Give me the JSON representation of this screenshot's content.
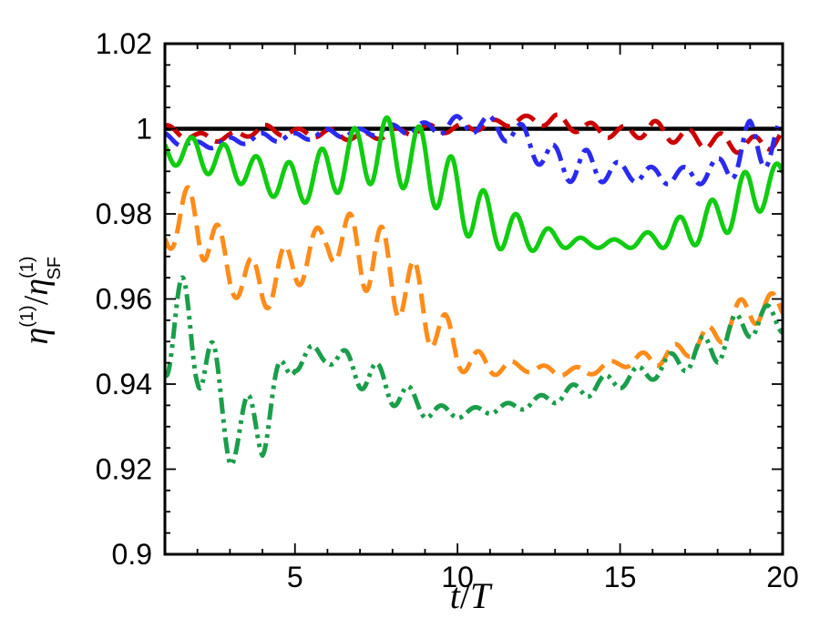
{
  "chart_data": {
    "type": "line",
    "xlabel": {
      "base": "t",
      "sep": "/",
      "den": "T"
    },
    "ylabel": {
      "eta": "η",
      "sup": "(1)",
      "slash": "/",
      "sub": "SF"
    },
    "xlim": [
      1,
      20
    ],
    "ylim": [
      0.9,
      1.02
    ],
    "x_ticks": [
      5,
      10,
      15,
      20
    ],
    "x_tick_labels": [
      "5",
      "10",
      "15",
      "20"
    ],
    "y_ticks": [
      0.9,
      0.92,
      0.94,
      0.96,
      0.98,
      1.0,
      1.02
    ],
    "y_tick_labels": [
      "0.9",
      "0.92",
      "0.94",
      "0.96",
      "0.98",
      "1",
      "1.02"
    ],
    "grid": false,
    "legend": "none",
    "series": [
      {
        "style": "solid",
        "color": "#000000",
        "x": [
          1,
          20
        ],
        "y": [
          1.0,
          1.0
        ]
      },
      {
        "style": "dashed",
        "color": "#cc0000",
        "x": [
          1,
          2,
          3,
          4,
          5,
          6,
          7,
          8,
          9,
          10,
          11,
          12,
          13,
          14,
          15,
          16,
          17,
          18,
          19,
          20
        ],
        "y": [
          1.0,
          0.998,
          0.998,
          1.0,
          0.999,
          0.999,
          0.998,
          0.999,
          1.0,
          1.0,
          1.001,
          1.002,
          1.002,
          1.0,
          0.999,
          1.0,
          0.998,
          0.997,
          0.996,
          0.998
        ],
        "amp": [
          0.001,
          0.001,
          0.001,
          0.001,
          0.001,
          0.001,
          0.001,
          0.001,
          0.001,
          0.001,
          0.001,
          0.001,
          0.0015,
          0.0015,
          0.0015,
          0.002,
          0.002,
          0.002,
          0.002,
          0.002
        ]
      },
      {
        "style": "dashdot",
        "color": "#2a2af0",
        "x": [
          1,
          2,
          3,
          4,
          5,
          6,
          7,
          8,
          9,
          10,
          11,
          12,
          13,
          14,
          15,
          16,
          17,
          18,
          19,
          20
        ],
        "y": [
          0.998,
          0.996,
          0.997,
          0.998,
          0.998,
          0.999,
          0.999,
          1.0,
          1.0,
          1.001,
          1.001,
          0.998,
          0.992,
          0.991,
          0.99,
          0.989,
          0.989,
          0.99,
          0.996,
          0.997
        ],
        "amp": [
          0.001,
          0.001,
          0.001,
          0.001,
          0.001,
          0.001,
          0.001,
          0.001,
          0.0015,
          0.002,
          0.002,
          0.003,
          0.004,
          0.004,
          0.002,
          0.002,
          0.002,
          0.003,
          0.006,
          0.005
        ]
      },
      {
        "style": "solid",
        "color": "#11cc11",
        "x": [
          1,
          2,
          3,
          4,
          5,
          6,
          7,
          8,
          9,
          10,
          11,
          12,
          13,
          14,
          15,
          16,
          17,
          18,
          19,
          20
        ],
        "y": [
          0.995,
          0.994,
          0.992,
          0.989,
          0.987,
          0.99,
          0.994,
          0.995,
          0.992,
          0.984,
          0.978,
          0.975,
          0.974,
          0.973,
          0.973,
          0.974,
          0.976,
          0.979,
          0.985,
          0.988
        ],
        "amp": [
          0.003,
          0.004,
          0.004,
          0.004,
          0.005,
          0.006,
          0.007,
          0.008,
          0.008,
          0.008,
          0.006,
          0.004,
          0.002,
          0.001,
          0.001,
          0.002,
          0.004,
          0.005,
          0.006,
          0.004
        ]
      },
      {
        "style": "dashed",
        "color": "#ff8c1a",
        "x": [
          1,
          2,
          3,
          4,
          5,
          6,
          7,
          8,
          9,
          10,
          11,
          12,
          13,
          14,
          15,
          16,
          17,
          18,
          19,
          20
        ],
        "y": [
          0.976,
          0.98,
          0.966,
          0.963,
          0.968,
          0.974,
          0.972,
          0.966,
          0.958,
          0.947,
          0.944,
          0.944,
          0.943,
          0.943,
          0.945,
          0.946,
          0.948,
          0.952,
          0.958,
          0.958
        ],
        "amp": [
          0.004,
          0.009,
          0.005,
          0.006,
          0.006,
          0.004,
          0.009,
          0.009,
          0.008,
          0.004,
          0.002,
          0.001,
          0.001,
          0.001,
          0.001,
          0.002,
          0.002,
          0.003,
          0.004,
          0.003
        ]
      },
      {
        "style": "dashdotdot",
        "color": "#1a9e4a",
        "x": [
          1,
          2,
          3,
          4,
          5,
          6,
          7,
          8,
          9,
          10,
          11,
          12,
          13,
          14,
          15,
          16,
          17,
          18,
          19,
          20
        ],
        "y": [
          0.953,
          0.953,
          0.927,
          0.932,
          0.946,
          0.947,
          0.943,
          0.939,
          0.934,
          0.933,
          0.934,
          0.935,
          0.937,
          0.939,
          0.941,
          0.943,
          0.946,
          0.949,
          0.955,
          0.955
        ],
        "amp": [
          0.011,
          0.013,
          0.006,
          0.009,
          0.003,
          0.002,
          0.004,
          0.004,
          0.002,
          0.001,
          0.001,
          0.001,
          0.0015,
          0.002,
          0.002,
          0.002,
          0.003,
          0.004,
          0.004,
          0.003
        ]
      }
    ]
  }
}
